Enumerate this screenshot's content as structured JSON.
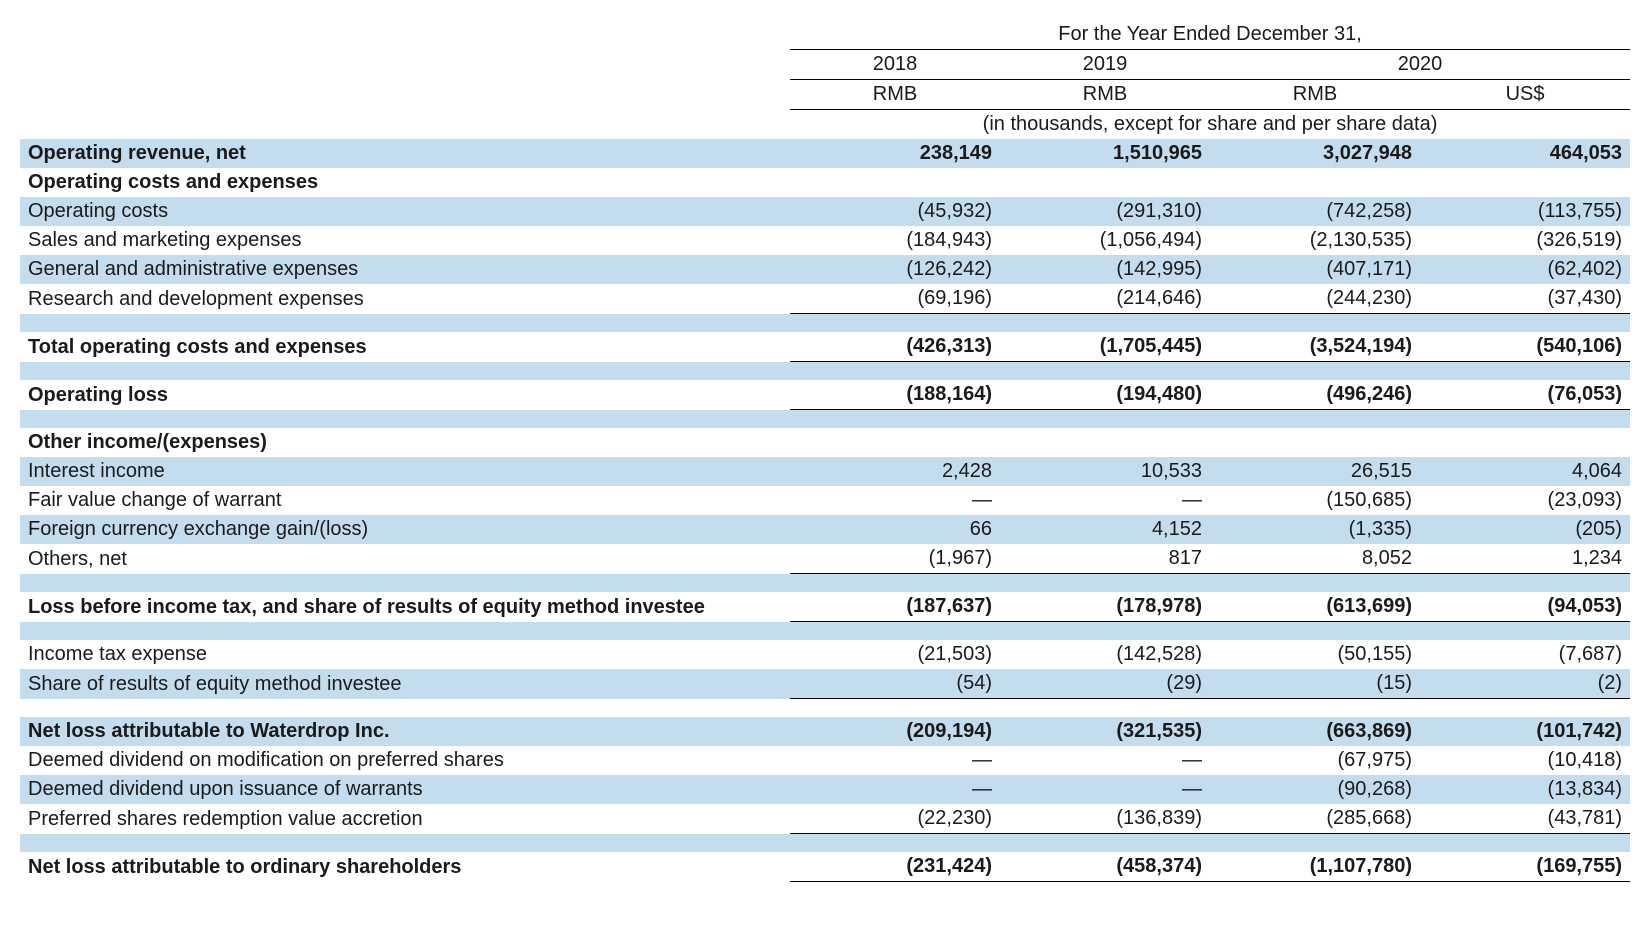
{
  "header": {
    "title": "For the Year Ended December 31,",
    "years": [
      "2018",
      "2019",
      "2020"
    ],
    "currencies": [
      "RMB",
      "RMB",
      "RMB",
      "US$"
    ],
    "note": "(in thousands, except for share and per share data)"
  },
  "rows": [
    {
      "label": "Operating revenue, net",
      "bold": true,
      "shade": true,
      "v": [
        "238,149",
        "1,510,965",
        "3,027,948",
        "464,053"
      ],
      "cell_bb": false
    },
    {
      "label": "Operating costs and expenses",
      "bold": true,
      "shade": false,
      "v": [
        "",
        "",
        "",
        ""
      ],
      "cell_bb": false
    },
    {
      "label": "Operating costs",
      "bold": false,
      "shade": true,
      "v": [
        "(45,932)",
        "(291,310)",
        "(742,258)",
        "(113,755)"
      ],
      "cell_bb": false
    },
    {
      "label": "Sales and marketing expenses",
      "bold": false,
      "shade": false,
      "v": [
        "(184,943)",
        "(1,056,494)",
        "(2,130,535)",
        "(326,519)"
      ],
      "cell_bb": false
    },
    {
      "label": "General and administrative expenses",
      "bold": false,
      "shade": true,
      "v": [
        "(126,242)",
        "(142,995)",
        "(407,171)",
        "(62,402)"
      ],
      "cell_bb": false
    },
    {
      "label": "Research and development expenses",
      "bold": false,
      "shade": false,
      "v": [
        "(69,196)",
        "(214,646)",
        "(244,230)",
        "(37,430)"
      ],
      "cell_bb": true
    },
    {
      "spacer": true,
      "shade": true
    },
    {
      "label": "Total operating costs and expenses",
      "bold": true,
      "shade": false,
      "v": [
        "(426,313)",
        "(1,705,445)",
        "(3,524,194)",
        "(540,106)"
      ],
      "cell_bb": true
    },
    {
      "spacer": true,
      "shade": true
    },
    {
      "label": "Operating loss",
      "bold": true,
      "shade": false,
      "v": [
        "(188,164)",
        "(194,480)",
        "(496,246)",
        "(76,053)"
      ],
      "cell_bb": true
    },
    {
      "spacer": true,
      "shade": true
    },
    {
      "label": "Other income/(expenses)",
      "bold": true,
      "shade": false,
      "v": [
        "",
        "",
        "",
        ""
      ],
      "cell_bb": false
    },
    {
      "label": "Interest income",
      "bold": false,
      "shade": true,
      "v": [
        "2,428",
        "10,533",
        "26,515",
        "4,064"
      ],
      "cell_bb": false
    },
    {
      "label": "Fair value change of warrant",
      "bold": false,
      "shade": false,
      "v": [
        "—",
        "—",
        "(150,685)",
        "(23,093)"
      ],
      "cell_bb": false
    },
    {
      "label": "Foreign currency exchange gain/(loss)",
      "bold": false,
      "shade": true,
      "v": [
        "66",
        "4,152",
        "(1,335)",
        "(205)"
      ],
      "cell_bb": false
    },
    {
      "label": "Others, net",
      "bold": false,
      "shade": false,
      "v": [
        "(1,967)",
        "817",
        "8,052",
        "1,234"
      ],
      "cell_bb": true
    },
    {
      "spacer": true,
      "shade": true
    },
    {
      "label": "Loss before income tax, and share of results of equity method investee",
      "bold": true,
      "shade": false,
      "v": [
        "(187,637)",
        "(178,978)",
        "(613,699)",
        "(94,053)"
      ],
      "cell_bb": true
    },
    {
      "spacer": true,
      "shade": true
    },
    {
      "label": "Income tax expense",
      "bold": false,
      "shade": false,
      "v": [
        "(21,503)",
        "(142,528)",
        "(50,155)",
        "(7,687)"
      ],
      "cell_bb": false
    },
    {
      "label": "Share of results of equity method investee",
      "bold": false,
      "shade": true,
      "v": [
        "(54)",
        "(29)",
        "(15)",
        "(2)"
      ],
      "cell_bb": true
    },
    {
      "spacer": true,
      "shade": false
    },
    {
      "label": "Net loss attributable to Waterdrop Inc.",
      "bold": true,
      "shade": true,
      "v": [
        "(209,194)",
        "(321,535)",
        "(663,869)",
        "(101,742)"
      ],
      "cell_bb": false
    },
    {
      "label": "Deemed dividend on modification on preferred shares",
      "bold": false,
      "shade": false,
      "v": [
        "—",
        "—",
        "(67,975)",
        "(10,418)"
      ],
      "cell_bb": false
    },
    {
      "label": "Deemed dividend upon issuance of warrants",
      "bold": false,
      "shade": true,
      "v": [
        "—",
        "—",
        "(90,268)",
        "(13,834)"
      ],
      "cell_bb": false
    },
    {
      "label": "Preferred shares redemption value accretion",
      "bold": false,
      "shade": false,
      "v": [
        "(22,230)",
        "(136,839)",
        "(285,668)",
        "(43,781)"
      ],
      "cell_bb": true
    },
    {
      "spacer": true,
      "shade": true
    },
    {
      "label": "Net loss attributable to ordinary shareholders",
      "bold": true,
      "shade": false,
      "v": [
        "(231,424)",
        "(458,374)",
        "(1,107,780)",
        "(169,755)"
      ],
      "cell_bb": true
    }
  ],
  "style": {
    "shade_color": "#c4ddee",
    "font_size": 20,
    "label_width": 770,
    "num_width": 210
  }
}
